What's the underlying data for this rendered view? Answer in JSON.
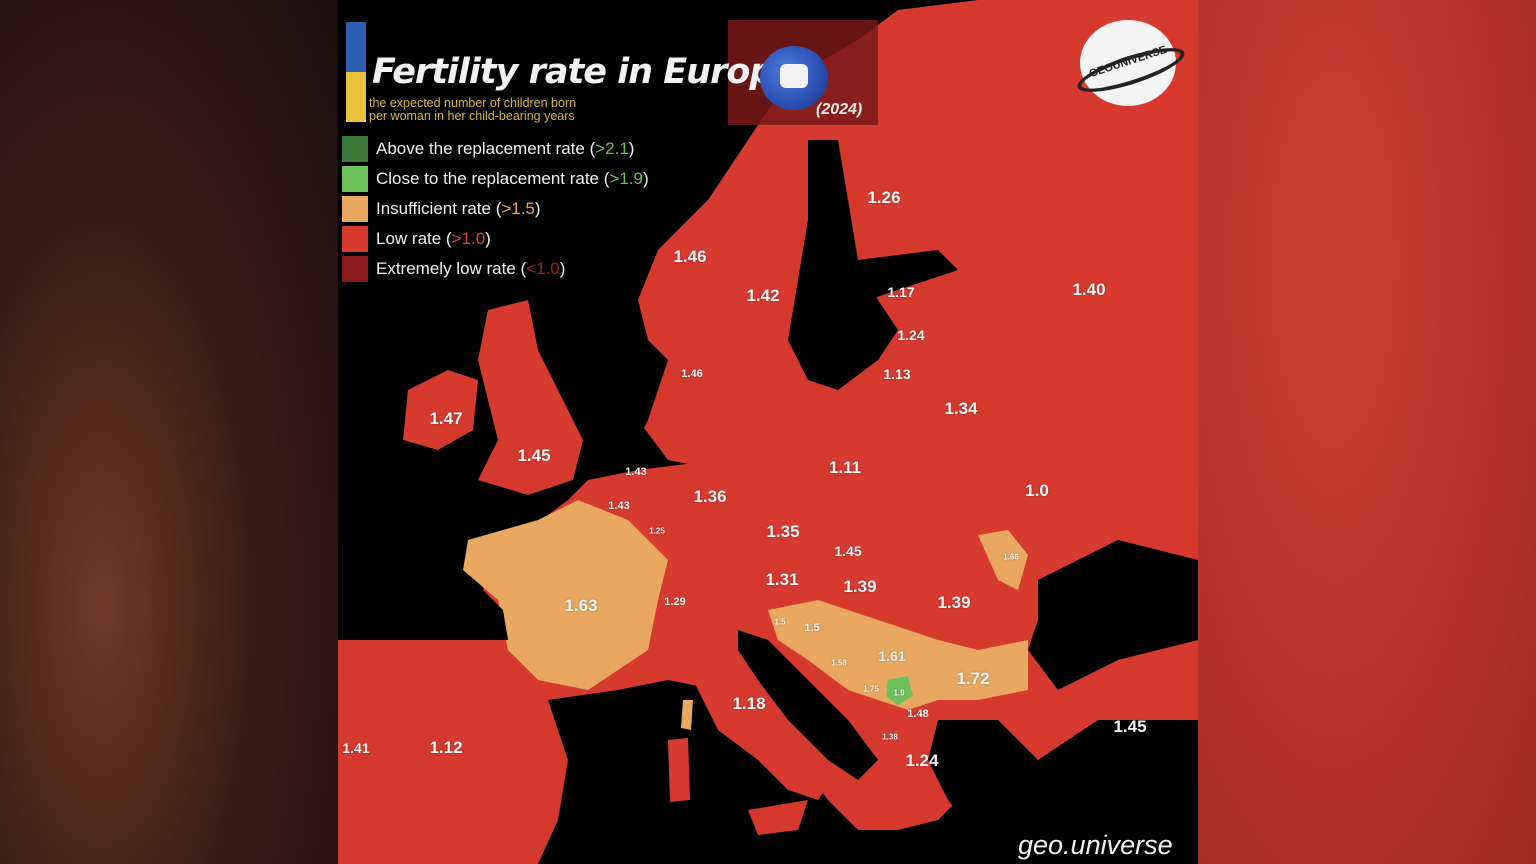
{
  "title": "Fertility rate in Europe",
  "subtitle_line1": "the expected number of children born",
  "subtitle_line2": "per woman in her child-bearing years",
  "year": "(2024)",
  "logo_text": "GEOUNIVERSE",
  "watermark": "geo.universe",
  "colors": {
    "above": "#3d7a3a",
    "close": "#6cbf5a",
    "insufficient": "#e8a862",
    "low": "#d63a2f",
    "extremely_low": "#8a1a18",
    "sea": "#000000"
  },
  "legend": [
    {
      "label": "Above the replacement rate (",
      "threshold": ">2.1",
      "close": ")",
      "color": "#3d7a3a",
      "threshold_color": "#6cbf5a"
    },
    {
      "label": "Close to the replacement rate (",
      "threshold": ">1.9",
      "close": ")",
      "color": "#6cbf5a",
      "threshold_color": "#6cbf5a"
    },
    {
      "label": "Insufficient rate (",
      "threshold": ">1.5",
      "close": ")",
      "color": "#e8a862",
      "threshold_color": "#e8a862"
    },
    {
      "label": "Low rate (",
      "threshold": ">1.0",
      "close": ")",
      "color": "#d63a2f",
      "threshold_color": "#e0453a"
    },
    {
      "label": "Extremely low rate (",
      "threshold": "<1.0",
      "close": ")",
      "color": "#8a1a18",
      "threshold_color": "#a02420"
    }
  ],
  "values": [
    {
      "id": "finland",
      "text": "1.26",
      "category": "low"
    },
    {
      "id": "norway",
      "text": "1.46",
      "category": "low"
    },
    {
      "id": "sweden",
      "text": "1.42",
      "category": "low"
    },
    {
      "id": "russia",
      "text": "1.40",
      "category": "low"
    },
    {
      "id": "estonia",
      "text": "1.17",
      "category": "low"
    },
    {
      "id": "latvia",
      "text": "1.24",
      "category": "low"
    },
    {
      "id": "lithuania",
      "text": "1.13",
      "category": "low"
    },
    {
      "id": "denmark",
      "text": "1.46",
      "category": "low"
    },
    {
      "id": "belarus",
      "text": "1.34",
      "category": "low"
    },
    {
      "id": "ireland",
      "text": "1.47",
      "category": "low"
    },
    {
      "id": "uk",
      "text": "1.45",
      "category": "low"
    },
    {
      "id": "netherlands",
      "text": "1.43",
      "category": "low"
    },
    {
      "id": "belgium",
      "text": "1.43",
      "category": "low"
    },
    {
      "id": "luxembourg",
      "text": "1.25",
      "category": "low"
    },
    {
      "id": "germany",
      "text": "1.36",
      "category": "low"
    },
    {
      "id": "poland",
      "text": "1.11",
      "category": "low"
    },
    {
      "id": "ukraine",
      "text": "1.0",
      "category": "low"
    },
    {
      "id": "czechia",
      "text": "1.35",
      "category": "low"
    },
    {
      "id": "slovakia",
      "text": "1.45",
      "category": "low"
    },
    {
      "id": "moldova",
      "text": "1.66",
      "category": "insufficient"
    },
    {
      "id": "austria",
      "text": "1.31",
      "category": "low"
    },
    {
      "id": "hungary",
      "text": "1.39",
      "category": "low"
    },
    {
      "id": "romania",
      "text": "1.39",
      "category": "low"
    },
    {
      "id": "switzerland",
      "text": "1.29",
      "category": "low"
    },
    {
      "id": "france",
      "text": "1.63",
      "category": "insufficient"
    },
    {
      "id": "slovenia",
      "text": "1.5",
      "category": "insufficient"
    },
    {
      "id": "croatia",
      "text": "1.5",
      "category": "insufficient"
    },
    {
      "id": "bosnia",
      "text": "1.58",
      "category": "insufficient"
    },
    {
      "id": "serbia",
      "text": "1.61",
      "category": "insufficient"
    },
    {
      "id": "bulgaria",
      "text": "1.72",
      "category": "insufficient"
    },
    {
      "id": "montenegro",
      "text": "1.75",
      "category": "insufficient"
    },
    {
      "id": "kosovo",
      "text": "1.9",
      "category": "close"
    },
    {
      "id": "north_macedonia",
      "text": "1.48",
      "category": "low"
    },
    {
      "id": "albania",
      "text": "1.38",
      "category": "low"
    },
    {
      "id": "greece",
      "text": "1.24",
      "category": "low"
    },
    {
      "id": "italy",
      "text": "1.18",
      "category": "low"
    },
    {
      "id": "portugal",
      "text": "1.41",
      "category": "low"
    },
    {
      "id": "spain",
      "text": "1.12",
      "category": "low"
    },
    {
      "id": "turkey",
      "text": "1.45",
      "category": "low"
    }
  ]
}
